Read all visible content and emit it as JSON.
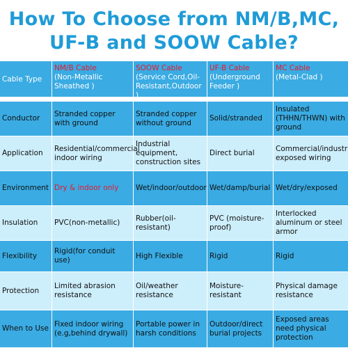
{
  "title": {
    "lines": [
      "How To Choose from NM/B,MC,",
      "UF-B and SOOW Cable?"
    ]
  },
  "table": {
    "header": {
      "label": "Cable Type",
      "cables": [
        {
          "name": "NM/B Cable",
          "desc": "(Non-Metallic Sheathed )"
        },
        {
          "name": "SOOW Cable",
          "desc": "(Service Cord,Oil-Resistant,Outdoor )"
        },
        {
          "name": "UF-B Cable",
          "desc": "(Underground Feeder )"
        },
        {
          "name": "MC Cable",
          "desc": "(Metal-Clad )"
        }
      ]
    },
    "rows": [
      [
        "Conductor",
        "Stranded copper with ground",
        "Stranded copper without ground",
        "Solid/stranded",
        "Insulated (THHN/THWN) with ground"
      ],
      [
        "Application",
        "Residential/commercial indoor wiring",
        "Industrial equipment, construction sites",
        "Direct burial",
        "Commercial/industrial exposed wiring"
      ],
      [
        "Environment",
        "Dry & indoor only",
        "Wet/indoor/outdoor",
        "Wet/damp/burial",
        "Wet/dry/exposed"
      ],
      [
        "Insulation",
        "PVC(non-metallic)",
        "Rubber(oil-resistant)",
        "PVC (moisture-proof)",
        "Interlocked aluminum or steel armor"
      ],
      [
        "Flexibility",
        "Rigid(for conduit use)",
        "High Flexible",
        "Rigid",
        "Rigid"
      ],
      [
        "Protection",
        "Limited abrasion resistance",
        "Oil/weather resistance",
        "Moisture-resistant",
        "Physical damage resistance"
      ],
      [
        "When to Use",
        "Fixed indoor wiring (e.g,behind drywall)",
        "Portable power in harsh conditions",
        "Outdoor/direct burial projects",
        "Exposed areas need physical protection"
      ]
    ]
  }
}
